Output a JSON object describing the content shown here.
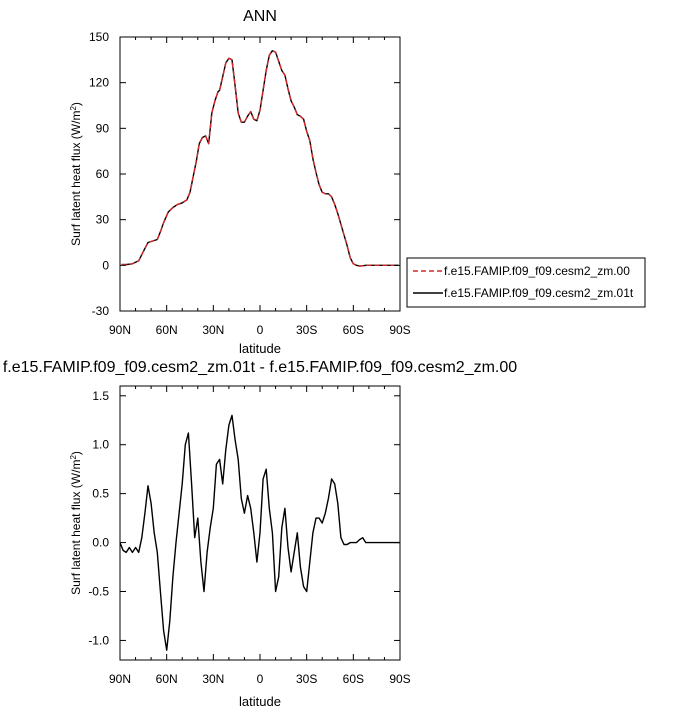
{
  "chart_data": [
    {
      "type": "line",
      "title": "ANN",
      "xlabel": "latitude",
      "ylabel": "Surf latent heat flux (W/m",
      "ylabel_sup": "2",
      "ylabel_close": ")",
      "xlim": [
        -90,
        90
      ],
      "ylim": [
        -30,
        150
      ],
      "xticks": [
        -90,
        -60,
        -30,
        0,
        30,
        60,
        90
      ],
      "xtick_labels": [
        "90N",
        "60N",
        "30N",
        "0",
        "30S",
        "60S",
        "90S"
      ],
      "yticks": [
        -30,
        0,
        30,
        60,
        90,
        120,
        150
      ],
      "ytick_labels": [
        "-30",
        "0",
        "30",
        "60",
        "90",
        "120",
        "150"
      ],
      "legend": "right",
      "series": [
        {
          "name": "f.e15.FAMIP.f09_f09.cesm2_zm.00",
          "color": "#d62728",
          "dash": "dashed",
          "x": [
            -89,
            -86,
            -82,
            -78,
            -75,
            -72,
            -69,
            -66,
            -64,
            -62,
            -59,
            -56,
            -53,
            -50,
            -47,
            -45,
            -43,
            -41,
            -39,
            -37,
            -35,
            -33,
            -31,
            -29,
            -27,
            -26,
            -24,
            -22,
            -20,
            -18,
            -16,
            -14,
            -12,
            -10,
            -8,
            -6,
            -4,
            -2,
            0,
            2,
            4,
            6,
            8,
            10,
            12,
            14,
            16,
            18,
            20,
            22,
            24,
            26,
            28,
            30,
            32,
            34,
            36,
            38,
            40,
            42,
            44,
            46,
            48,
            50,
            52,
            54,
            56,
            58,
            60,
            62,
            64,
            66,
            68,
            70,
            72,
            74,
            76,
            78,
            80,
            82,
            84,
            86,
            89
          ],
          "y": [
            0.5,
            0.5,
            1,
            3,
            9,
            15,
            16,
            17,
            22,
            28,
            35,
            38,
            40,
            41,
            43,
            48,
            58,
            68,
            80,
            84,
            85,
            80,
            100,
            108,
            114,
            115,
            124,
            133,
            136,
            135,
            118,
            100,
            94,
            94,
            98,
            101,
            96,
            95,
            102,
            115,
            128,
            138,
            141,
            140,
            134,
            128,
            125,
            116,
            108,
            104,
            99,
            98,
            96,
            88,
            82,
            70,
            61,
            53,
            48,
            47,
            47,
            45,
            40,
            34,
            27,
            20,
            13,
            5,
            1,
            0,
            -0.5,
            -0.3,
            0,
            0,
            0,
            0,
            0,
            0,
            0,
            0,
            0,
            0,
            0
          ]
        },
        {
          "name": "f.e15.FAMIP.f09_f09.cesm2_zm.01t",
          "color": "#000000",
          "dash": "solid",
          "x": [
            -89,
            -86,
            -82,
            -78,
            -75,
            -72,
            -69,
            -66,
            -64,
            -62,
            -59,
            -56,
            -53,
            -50,
            -47,
            -45,
            -43,
            -41,
            -39,
            -37,
            -35,
            -33,
            -31,
            -29,
            -27,
            -26,
            -24,
            -22,
            -20,
            -18,
            -16,
            -14,
            -12,
            -10,
            -8,
            -6,
            -4,
            -2,
            0,
            2,
            4,
            6,
            8,
            10,
            12,
            14,
            16,
            18,
            20,
            22,
            24,
            26,
            28,
            30,
            32,
            34,
            36,
            38,
            40,
            42,
            44,
            46,
            48,
            50,
            52,
            54,
            56,
            58,
            60,
            62,
            64,
            66,
            68,
            70,
            72,
            74,
            76,
            78,
            80,
            82,
            84,
            86,
            89
          ],
          "y": [
            0.5,
            0.5,
            1,
            3,
            9,
            15,
            16,
            17,
            22,
            28,
            35,
            38,
            40,
            41,
            43,
            48,
            58,
            68,
            80,
            84,
            85,
            80,
            100,
            108,
            114,
            115,
            124,
            133,
            136,
            135,
            118,
            100,
            94,
            94,
            98,
            101,
            96,
            95,
            102,
            115,
            128,
            138,
            141,
            140,
            134,
            128,
            125,
            116,
            108,
            104,
            99,
            98,
            96,
            88,
            82,
            70,
            61,
            53,
            48,
            47,
            47,
            45,
            40,
            34,
            27,
            20,
            13,
            5,
            1,
            0,
            -0.5,
            -0.3,
            0,
            0,
            0,
            0,
            0,
            0,
            0,
            0,
            0,
            0,
            0
          ]
        }
      ]
    },
    {
      "type": "line",
      "title": "f.e15.FAMIP.f09_f09.cesm2_zm.01t - f.e15.FAMIP.f09_f09.cesm2_zm.00",
      "xlabel": "latitude",
      "ylabel": "Surf latent heat flux (W/m",
      "ylabel_sup": "2",
      "ylabel_close": ")",
      "xlim": [
        -90,
        90
      ],
      "ylim": [
        -1.2,
        1.6
      ],
      "xticks": [
        -90,
        -60,
        -30,
        0,
        30,
        60,
        90
      ],
      "xtick_labels": [
        "90N",
        "60N",
        "30N",
        "0",
        "30S",
        "60S",
        "90S"
      ],
      "yticks": [
        -1.0,
        -0.5,
        0.0,
        0.5,
        1.0,
        1.5
      ],
      "ytick_labels": [
        "-1.0",
        "-0.5",
        "0.0",
        "0.5",
        "1.0",
        "1.5"
      ],
      "series": [
        {
          "name": "f.e15.FAMIP.f09_f09.cesm2_zm.01t - f.e15.FAMIP.f09_f09.cesm2_zm.00",
          "color": "#000000",
          "dash": "solid",
          "x": [
            -90,
            -88,
            -86,
            -84,
            -82,
            -80,
            -78,
            -76,
            -74,
            -72,
            -70,
            -68,
            -66,
            -64,
            -62,
            -60,
            -58,
            -56,
            -54,
            -52,
            -50,
            -48,
            -46,
            -44,
            -42,
            -40,
            -38,
            -36,
            -34,
            -32,
            -30,
            -28,
            -26,
            -24,
            -22,
            -20,
            -18,
            -16,
            -14,
            -12,
            -10,
            -8,
            -6,
            -4,
            -2,
            0,
            2,
            4,
            6,
            8,
            10,
            12,
            14,
            16,
            18,
            20,
            22,
            24,
            26,
            28,
            30,
            32,
            34,
            36,
            38,
            40,
            42,
            44,
            46,
            48,
            50,
            52,
            54,
            56,
            58,
            60,
            62,
            64,
            66,
            68,
            70,
            72,
            74,
            76,
            78,
            80,
            82,
            84,
            86,
            88,
            90
          ],
          "y": [
            0.0,
            -0.08,
            -0.1,
            -0.05,
            -0.1,
            -0.05,
            -0.1,
            0.05,
            0.3,
            0.58,
            0.4,
            0.1,
            -0.1,
            -0.5,
            -0.9,
            -1.1,
            -0.8,
            -0.35,
            0.0,
            0.3,
            0.6,
            1.0,
            1.12,
            0.6,
            0.05,
            0.25,
            -0.2,
            -0.5,
            -0.1,
            0.15,
            0.35,
            0.8,
            0.85,
            0.6,
            0.95,
            1.2,
            1.3,
            1.05,
            0.85,
            0.45,
            0.3,
            0.48,
            0.35,
            0.1,
            -0.2,
            0.1,
            0.65,
            0.75,
            0.35,
            0.1,
            -0.5,
            -0.35,
            0.15,
            0.35,
            -0.05,
            -0.3,
            -0.1,
            0.1,
            -0.25,
            -0.45,
            -0.5,
            -0.2,
            0.1,
            0.25,
            0.25,
            0.2,
            0.3,
            0.45,
            0.65,
            0.6,
            0.4,
            0.05,
            -0.02,
            -0.02,
            0.0,
            0.0,
            0.0,
            0.03,
            0.05,
            0.0,
            0.0,
            0.0,
            0.0,
            0.0,
            0.0,
            0.0,
            0.0,
            0.0,
            0.0,
            0.0,
            0.0
          ]
        }
      ]
    }
  ]
}
